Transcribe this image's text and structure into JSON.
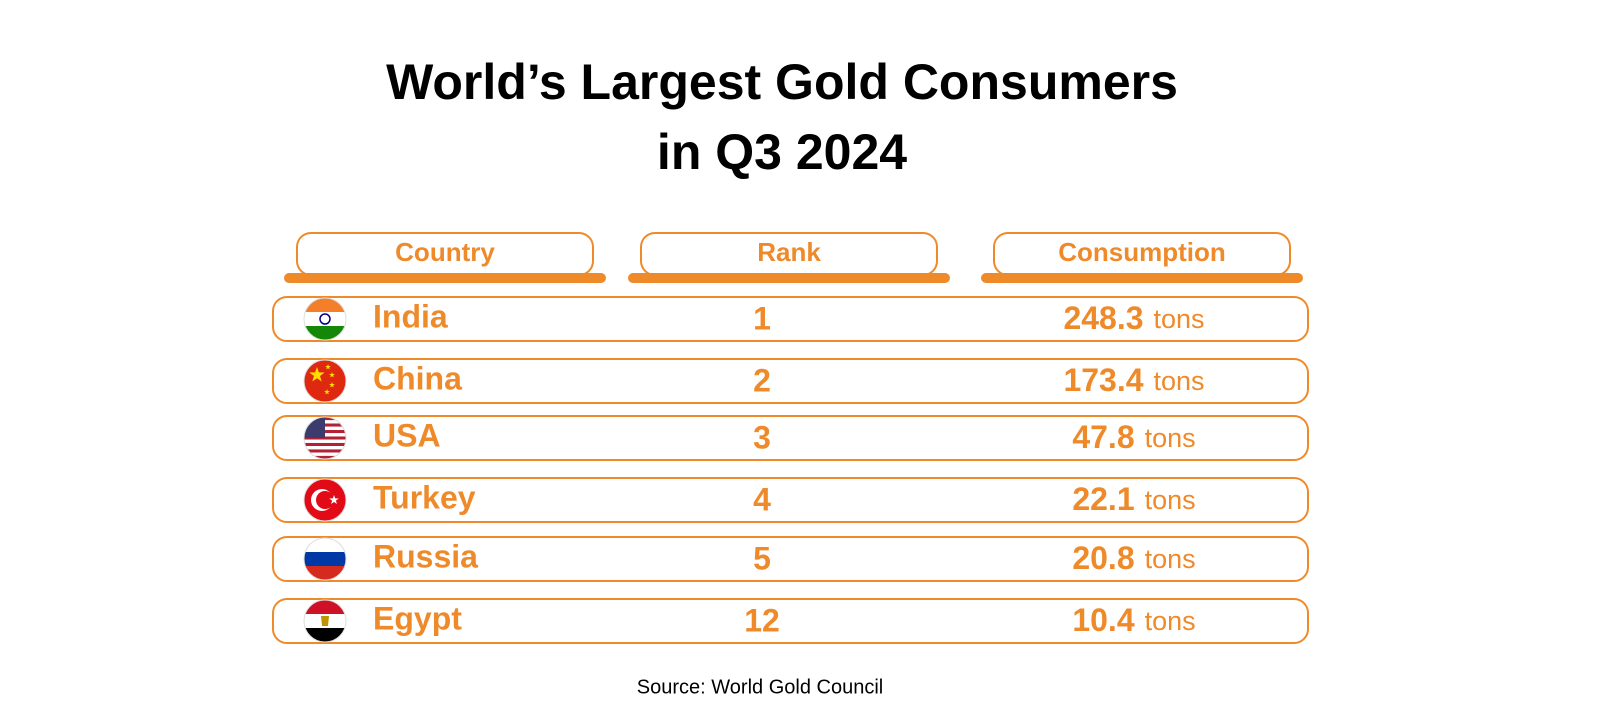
{
  "title": [
    "World’s Largest Gold Consumers",
    "in Q3 2024"
  ],
  "table": {
    "header": [
      "Country",
      "Rank",
      "Consumption"
    ],
    "rows": [
      {
        "country": "India",
        "rank": 1,
        "consumption": 248.3,
        "unit": "tons"
      },
      {
        "country": "China",
        "rank": 2,
        "consumption": 173.4,
        "unit": "tons"
      },
      {
        "country": "USA",
        "rank": 3,
        "consumption": 47.8,
        "unit": "tons"
      },
      {
        "country": "Turkey",
        "rank": 4,
        "consumption": 22.1,
        "unit": "tons"
      },
      {
        "country": "Russia",
        "rank": 5,
        "consumption": 20.8,
        "unit": "tons"
      },
      {
        "country": "Egypt",
        "rank": 12,
        "consumption": 10.4,
        "unit": "tons"
      }
    ]
  },
  "source": "Source: World Gold Council"
}
